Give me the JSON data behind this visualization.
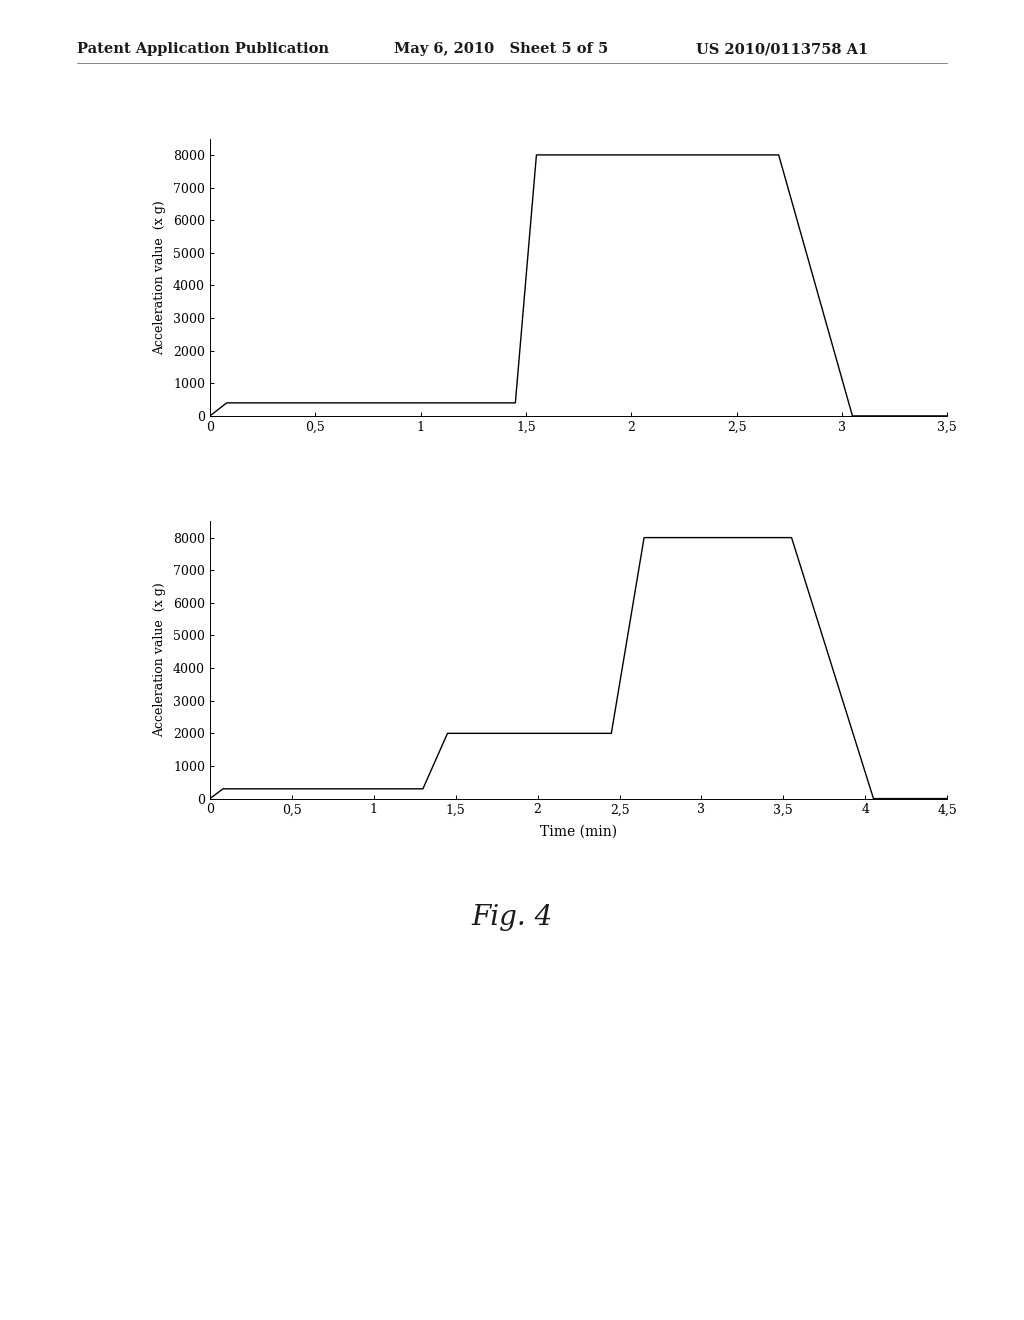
{
  "header_left": "Patent Application Publication",
  "header_mid": "May 6, 2010   Sheet 5 of 5",
  "header_right": "US 2010/0113758 A1",
  "fig_label": "Fig. 4",
  "background_color": "#ffffff",
  "top_chart": {
    "x": [
      0,
      0.08,
      0.12,
      1.45,
      1.55,
      1.95,
      2.7,
      3.05,
      3.12,
      3.5
    ],
    "y": [
      0,
      400,
      400,
      400,
      8000,
      8000,
      8000,
      0,
      0,
      0
    ],
    "ylabel": "Acceleration value  (x g)",
    "xlim": [
      0,
      3.5
    ],
    "ylim": [
      0,
      8500
    ],
    "yticks": [
      0,
      1000,
      2000,
      3000,
      4000,
      5000,
      6000,
      7000,
      8000
    ],
    "xticks": [
      0,
      0.5,
      1,
      1.5,
      2,
      2.5,
      3,
      3.5
    ],
    "xtick_labels": [
      "0",
      "0,5",
      "1",
      "1,5",
      "2",
      "2,5",
      "3",
      "3,5"
    ]
  },
  "bottom_chart": {
    "x": [
      0,
      0.08,
      0.12,
      1.3,
      1.45,
      2.05,
      2.45,
      2.65,
      3.55,
      4.05,
      4.18,
      4.5
    ],
    "y": [
      0,
      300,
      300,
      300,
      2000,
      2000,
      2000,
      8000,
      8000,
      0,
      0,
      0
    ],
    "ylabel": "Acceleration value  (x g)",
    "xlabel": "Time (min)",
    "xlim": [
      0,
      4.5
    ],
    "ylim": [
      0,
      8500
    ],
    "yticks": [
      0,
      1000,
      2000,
      3000,
      4000,
      5000,
      6000,
      7000,
      8000
    ],
    "xticks": [
      0,
      0.5,
      1,
      1.5,
      2,
      2.5,
      3,
      3.5,
      4,
      4.5
    ],
    "xtick_labels": [
      "0",
      "0,5",
      "1",
      "1,5",
      "2",
      "2,5",
      "3",
      "3,5",
      "4",
      "4,5"
    ]
  }
}
